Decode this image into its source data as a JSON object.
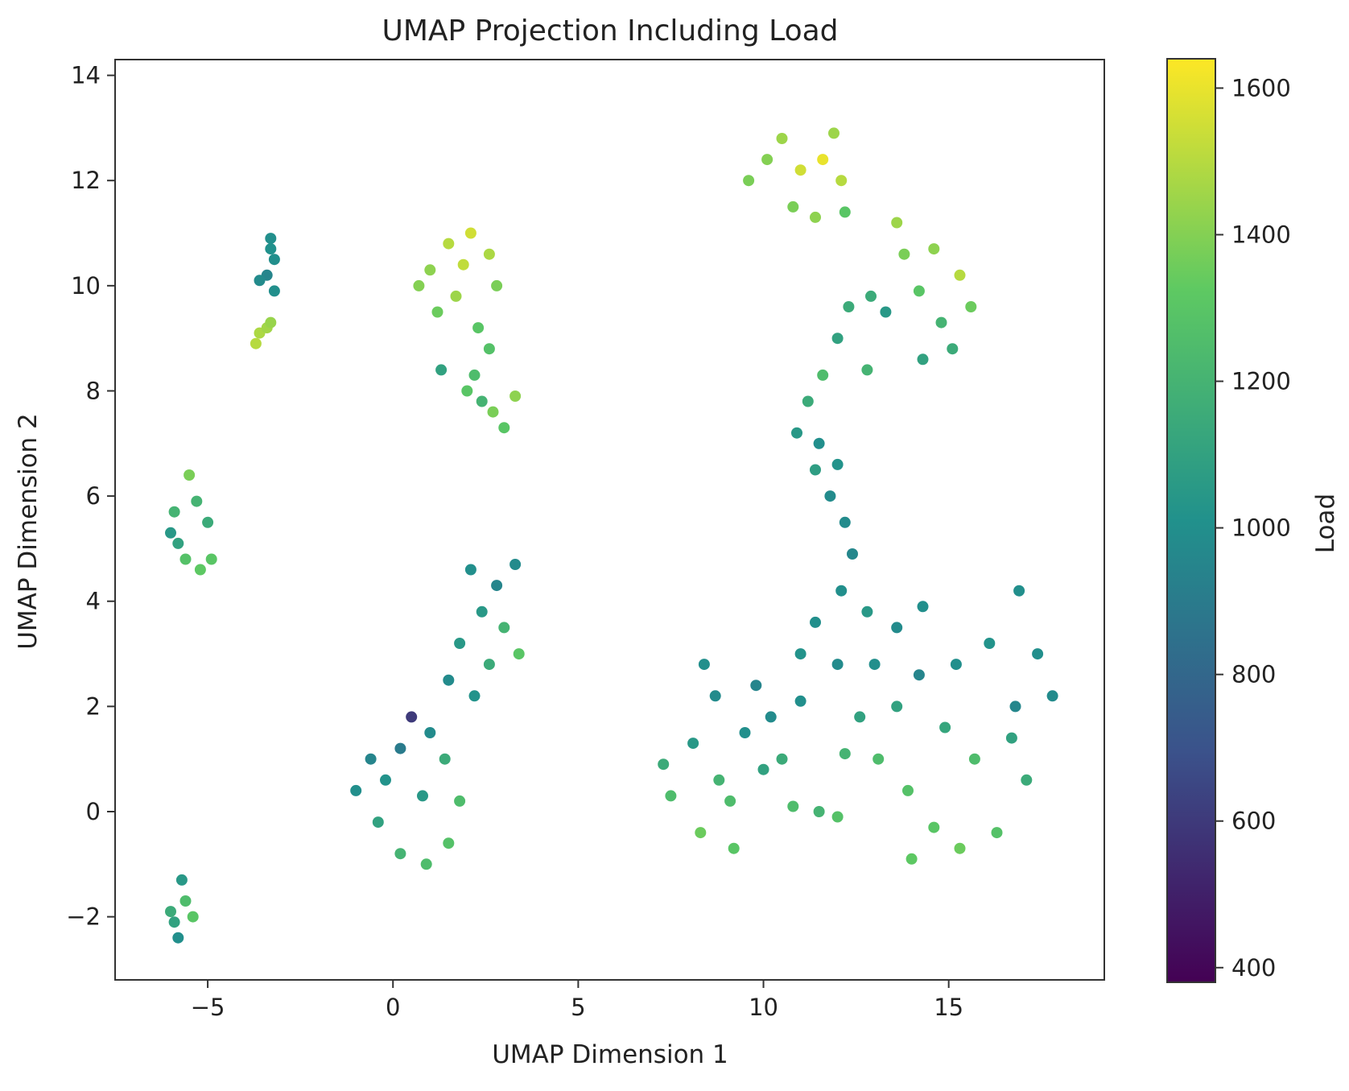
{
  "chart_data": {
    "type": "scatter",
    "title": "UMAP Projection Including Load",
    "xlabel": "UMAP Dimension 1",
    "ylabel": "UMAP Dimension 2",
    "xlim": [
      -7.5,
      19.2
    ],
    "ylim": [
      -3.2,
      14.3
    ],
    "xticks": [
      -5,
      0,
      5,
      10,
      15
    ],
    "yticks": [
      -2,
      0,
      2,
      4,
      6,
      8,
      10,
      12,
      14
    ],
    "grid": false,
    "legend": "none",
    "colorbar": {
      "label": "Load",
      "colormap": "viridis",
      "range": [
        380,
        1640
      ],
      "ticks": [
        400,
        600,
        800,
        1000,
        1200,
        1400,
        1600
      ]
    },
    "clusters": [
      {
        "id": "a",
        "points": [
          [
            -3.3,
            10.9,
            1000
          ],
          [
            -3.2,
            10.5,
            1000
          ],
          [
            -3.4,
            10.2,
            950
          ],
          [
            -3.2,
            9.9,
            1000
          ],
          [
            -3.6,
            10.1,
            980
          ],
          [
            -3.3,
            10.7,
            1010
          ]
        ]
      },
      {
        "id": "b",
        "points": [
          [
            -3.6,
            9.1,
            1480
          ],
          [
            -3.4,
            9.2,
            1460
          ],
          [
            -3.7,
            8.9,
            1500
          ],
          [
            -3.3,
            9.3,
            1440
          ]
        ]
      },
      {
        "id": "c",
        "points": [
          [
            -5.9,
            5.7,
            1200
          ],
          [
            -5.8,
            5.1,
            1100
          ],
          [
            -5.6,
            4.8,
            1280
          ],
          [
            -5.2,
            4.6,
            1320
          ],
          [
            -4.9,
            4.8,
            1300
          ],
          [
            -5.5,
            6.4,
            1380
          ],
          [
            -5.0,
            5.5,
            1150
          ],
          [
            -6.0,
            5.3,
            1050
          ],
          [
            -5.3,
            5.9,
            1200
          ]
        ]
      },
      {
        "id": "d",
        "points": [
          [
            -5.7,
            -1.3,
            1050
          ],
          [
            -5.6,
            -1.7,
            1250
          ],
          [
            -5.9,
            -2.1,
            1100
          ],
          [
            -5.8,
            -2.4,
            1000
          ],
          [
            -5.4,
            -2.0,
            1300
          ],
          [
            -6.0,
            -1.9,
            1150
          ]
        ]
      },
      {
        "id": "e",
        "points": [
          [
            1.5,
            10.8,
            1500
          ],
          [
            2.1,
            11.0,
            1550
          ],
          [
            2.6,
            10.6,
            1480
          ],
          [
            1.0,
            10.3,
            1420
          ],
          [
            1.7,
            9.8,
            1450
          ],
          [
            2.8,
            10.0,
            1380
          ],
          [
            1.2,
            9.5,
            1350
          ],
          [
            2.3,
            9.2,
            1300
          ],
          [
            1.9,
            10.4,
            1520
          ],
          [
            0.7,
            10.0,
            1400
          ]
        ]
      },
      {
        "id": "f",
        "points": [
          [
            2.2,
            8.3,
            1250
          ],
          [
            2.4,
            7.8,
            1200
          ],
          [
            2.0,
            8.0,
            1300
          ],
          [
            2.7,
            7.6,
            1380
          ],
          [
            3.0,
            7.3,
            1300
          ],
          [
            3.3,
            7.9,
            1420
          ],
          [
            1.3,
            8.4,
            1100
          ],
          [
            2.6,
            8.8,
            1280
          ]
        ]
      },
      {
        "id": "g",
        "points": [
          [
            2.1,
            4.6,
            1000
          ],
          [
            2.8,
            4.3,
            950
          ],
          [
            3.3,
            4.7,
            980
          ],
          [
            2.4,
            3.8,
            1050
          ],
          [
            3.0,
            3.5,
            1200
          ],
          [
            3.4,
            3.0,
            1300
          ],
          [
            2.6,
            2.8,
            1150
          ],
          [
            1.8,
            3.2,
            1050
          ],
          [
            1.5,
            2.5,
            980
          ],
          [
            2.2,
            2.2,
            1020
          ]
        ]
      },
      {
        "id": "h",
        "points": [
          [
            0.5,
            1.8,
            600
          ],
          [
            0.2,
            1.2,
            900
          ],
          [
            -0.6,
            1.0,
            950
          ],
          [
            -1.0,
            0.4,
            1000
          ],
          [
            -0.4,
            -0.2,
            1100
          ],
          [
            0.2,
            -0.8,
            1200
          ],
          [
            0.9,
            -1.0,
            1250
          ],
          [
            1.5,
            -0.6,
            1280
          ],
          [
            1.8,
            0.2,
            1250
          ],
          [
            1.4,
            1.0,
            1150
          ],
          [
            0.8,
            0.3,
            1050
          ],
          [
            -0.2,
            0.6,
            1020
          ],
          [
            1.0,
            1.5,
            980
          ]
        ]
      },
      {
        "id": "i",
        "points": [
          [
            10.5,
            12.8,
            1450
          ],
          [
            11.0,
            12.2,
            1550
          ],
          [
            11.6,
            12.4,
            1600
          ],
          [
            12.1,
            12.0,
            1500
          ],
          [
            10.8,
            11.5,
            1380
          ],
          [
            11.4,
            11.3,
            1420
          ],
          [
            12.2,
            11.4,
            1300
          ],
          [
            10.1,
            12.4,
            1400
          ],
          [
            9.6,
            12.0,
            1380
          ],
          [
            11.9,
            12.9,
            1450
          ]
        ]
      },
      {
        "id": "j",
        "points": [
          [
            13.8,
            10.6,
            1380
          ],
          [
            14.6,
            10.7,
            1420
          ],
          [
            15.3,
            10.2,
            1500
          ],
          [
            15.6,
            9.6,
            1350
          ],
          [
            14.2,
            9.9,
            1300
          ],
          [
            14.8,
            9.3,
            1200
          ],
          [
            15.1,
            8.8,
            1150
          ],
          [
            14.3,
            8.6,
            1100
          ],
          [
            13.3,
            9.5,
            1050
          ],
          [
            13.6,
            11.2,
            1450
          ]
        ]
      },
      {
        "id": "k",
        "points": [
          [
            12.3,
            9.6,
            1150
          ],
          [
            12.0,
            9.0,
            1100
          ],
          [
            11.6,
            8.3,
            1250
          ],
          [
            11.2,
            7.8,
            1150
          ],
          [
            10.9,
            7.2,
            1050
          ],
          [
            11.5,
            7.0,
            1000
          ],
          [
            12.0,
            6.6,
            1020
          ],
          [
            11.8,
            6.0,
            980
          ],
          [
            11.4,
            6.5,
            1080
          ],
          [
            12.8,
            8.4,
            1200
          ],
          [
            12.9,
            9.8,
            1150
          ]
        ]
      },
      {
        "id": "l",
        "points": [
          [
            12.2,
            5.5,
            980
          ],
          [
            12.4,
            4.9,
            960
          ],
          [
            12.1,
            4.2,
            1000
          ],
          [
            11.4,
            3.6,
            1000
          ],
          [
            12.8,
            3.8,
            1050
          ],
          [
            13.6,
            3.5,
            980
          ],
          [
            14.3,
            3.9,
            1000
          ],
          [
            11.0,
            3.0,
            1020
          ],
          [
            12.0,
            2.8,
            980
          ],
          [
            13.0,
            2.8,
            1000
          ],
          [
            14.2,
            2.6,
            950
          ],
          [
            15.2,
            2.8,
            1000
          ],
          [
            16.1,
            3.2,
            1020
          ],
          [
            16.9,
            4.2,
            1000
          ],
          [
            17.4,
            3.0,
            1000
          ],
          [
            17.8,
            2.2,
            980
          ],
          [
            16.8,
            2.0,
            960
          ]
        ]
      },
      {
        "id": "m",
        "points": [
          [
            12.6,
            1.8,
            1100
          ],
          [
            13.1,
            1.0,
            1250
          ],
          [
            13.9,
            0.4,
            1280
          ],
          [
            14.6,
            -0.3,
            1300
          ],
          [
            15.3,
            -0.7,
            1350
          ],
          [
            14.0,
            -0.9,
            1320
          ],
          [
            16.3,
            -0.4,
            1280
          ],
          [
            17.1,
            0.6,
            1150
          ],
          [
            16.7,
            1.4,
            1100
          ],
          [
            15.7,
            1.0,
            1250
          ],
          [
            14.9,
            1.6,
            1120
          ],
          [
            13.6,
            2.0,
            1100
          ],
          [
            12.2,
            1.1,
            1200
          ]
        ]
      },
      {
        "id": "n",
        "points": [
          [
            7.3,
            0.9,
            1150
          ],
          [
            7.5,
            0.3,
            1250
          ],
          [
            8.3,
            -0.4,
            1350
          ],
          [
            9.2,
            -0.7,
            1300
          ],
          [
            8.8,
            0.6,
            1200
          ],
          [
            8.1,
            1.3,
            1050
          ],
          [
            8.7,
            2.2,
            980
          ],
          [
            9.5,
            1.5,
            1000
          ],
          [
            9.8,
            2.4,
            950
          ],
          [
            10.0,
            0.8,
            1100
          ],
          [
            9.1,
            0.2,
            1250
          ],
          [
            8.4,
            2.8,
            1000
          ]
        ]
      },
      {
        "id": "o",
        "points": [
          [
            10.8,
            0.1,
            1250
          ],
          [
            11.5,
            0.0,
            1200
          ],
          [
            12.0,
            -0.1,
            1280
          ],
          [
            10.5,
            1.0,
            1150
          ],
          [
            11.0,
            2.1,
            1000
          ],
          [
            10.2,
            1.8,
            980
          ]
        ]
      }
    ]
  }
}
